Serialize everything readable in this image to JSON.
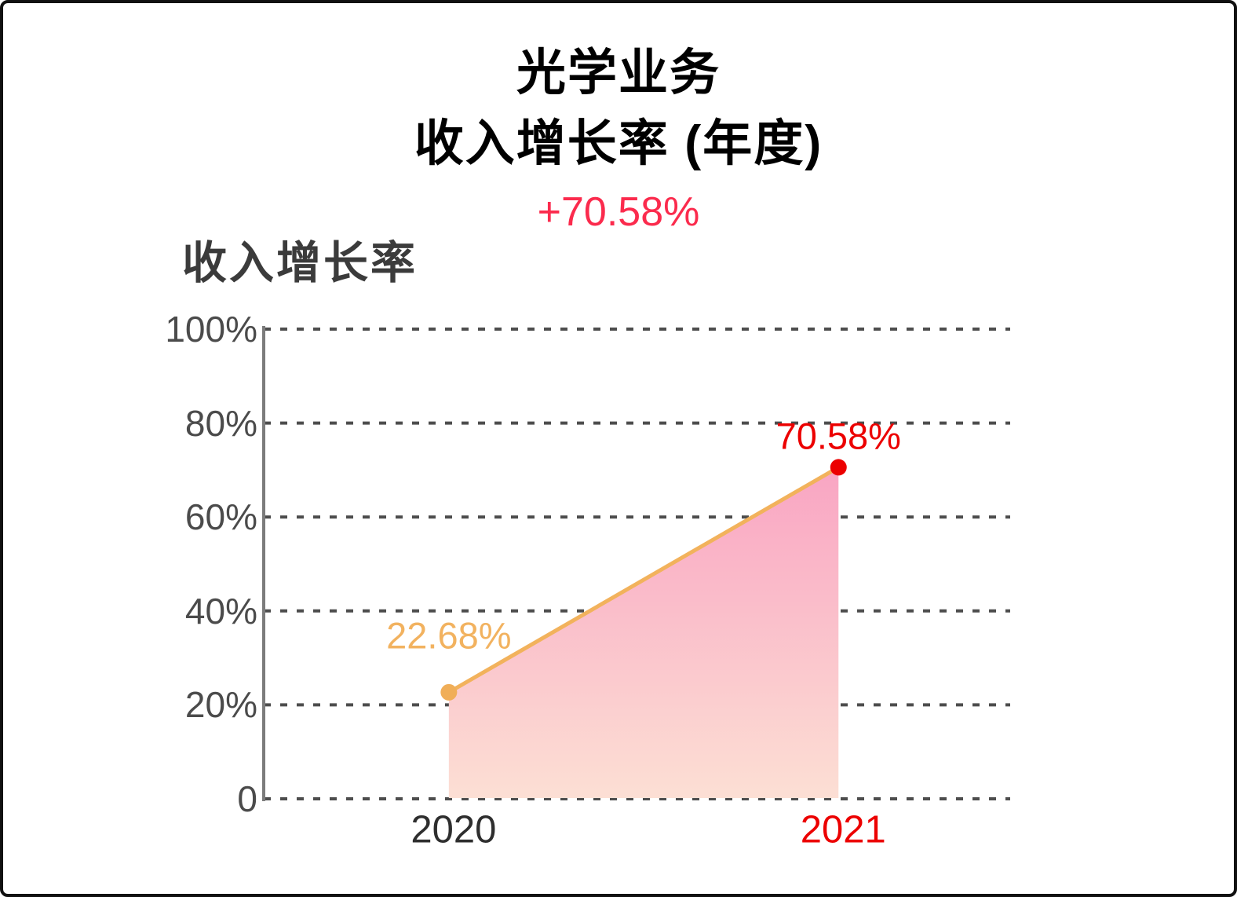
{
  "header": {
    "title_line1": "光学业务",
    "title_line2": "收入增长率 (年度)",
    "change_label": "+70.58%",
    "change_color": "#fb2b4d"
  },
  "chart_data": {
    "type": "area",
    "title": "收入增长率",
    "categories": [
      "2020",
      "2021"
    ],
    "values": [
      22.68,
      70.58
    ],
    "value_labels": [
      "22.68%",
      "70.58%"
    ],
    "value_label_colors": [
      "#f2b25f",
      "#ec0000"
    ],
    "point_colors": [
      "#f0ae58",
      "#ec0000"
    ],
    "category_label_colors": [
      "#2e2e2e",
      "#ec0000"
    ],
    "line_color": "#f2b25c",
    "area_gradient_top": "#f9a5c3",
    "area_gradient_bottom": "#fcdfd4",
    "xlabel": "",
    "ylabel": "",
    "ylim": [
      0,
      100
    ],
    "y_ticks": [
      "100%",
      "80%",
      "60%",
      "40%",
      "20%",
      "0"
    ],
    "y_tick_values": [
      100,
      80,
      60,
      40,
      20,
      0
    ],
    "grid": "horizontal-dotted",
    "grid_color": "#4d4d4d",
    "axis_color": "#7c7c7c",
    "legend": "none"
  }
}
